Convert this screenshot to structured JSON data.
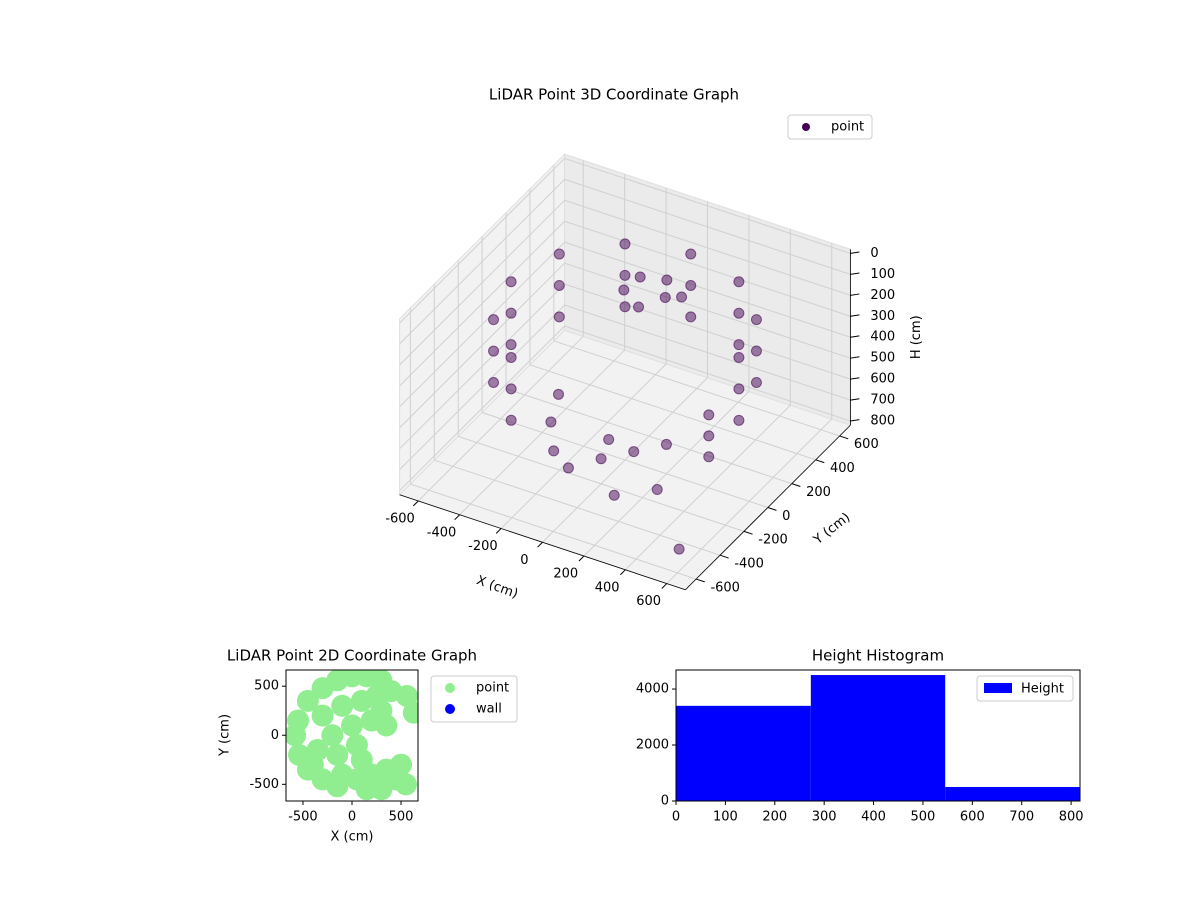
{
  "chart_data": [
    {
      "type": "scatter3d",
      "title": "LiDAR Point 3D Coordinate Graph",
      "xlabel": "X (cm)",
      "ylabel": "Y (cm)",
      "zlabel": "H (cm)",
      "xlim": [
        -690,
        690
      ],
      "ylim": [
        -690,
        690
      ],
      "zlim": [
        820,
        -20
      ],
      "xticks": [
        -600,
        -400,
        -200,
        0,
        200,
        400,
        600
      ],
      "yticks": [
        -600,
        -400,
        -200,
        0,
        200,
        400,
        600
      ],
      "zticks": [
        0,
        100,
        200,
        300,
        400,
        500,
        600,
        700,
        800
      ],
      "legend": "upper right",
      "series": [
        {
          "name": "point",
          "color": "#440154",
          "x": [
            550,
            476,
            275,
            0,
            -275,
            -476,
            -550,
            -476,
            -275,
            550,
            476,
            275,
            0,
            -275,
            -476,
            -550,
            -476,
            -275,
            550,
            476,
            275,
            0,
            -275,
            -476,
            -550,
            -476,
            -275,
            520,
            520,
            520,
            -100,
            0,
            50,
            -150,
            100,
            -50,
            -300,
            -200,
            -100,
            0,
            100,
            200,
            -350,
            300,
            -50,
            150,
            550
          ],
          "y": [
            0,
            275,
            476,
            550,
            476,
            275,
            0,
            -275,
            -476,
            0,
            275,
            476,
            550,
            476,
            275,
            0,
            -275,
            -476,
            0,
            275,
            476,
            550,
            476,
            275,
            0,
            -275,
            -476,
            -200,
            -200,
            -200,
            300,
            350,
            250,
            250,
            300,
            200,
            -100,
            -250,
            -300,
            -200,
            -100,
            0,
            50,
            -250,
            -50,
            -350,
            -500
          ],
          "h": [
            150,
            150,
            150,
            150,
            150,
            150,
            150,
            150,
            150,
            300,
            300,
            300,
            300,
            300,
            300,
            300,
            300,
            300,
            450,
            450,
            450,
            450,
            450,
            450,
            450,
            450,
            450,
            320,
            420,
            520,
            150,
            160,
            170,
            200,
            180,
            220,
            680,
            700,
            720,
            700,
            690,
            680,
            650,
            720,
            710,
            740,
            780
          ]
        }
      ]
    },
    {
      "type": "scatter",
      "title": "LiDAR Point 2D Coordinate Graph",
      "xlabel": "X (cm)",
      "ylabel": "Y (cm)",
      "xlim": [
        -673,
        673
      ],
      "ylim": [
        -670,
        665
      ],
      "xticks": [
        -500,
        0,
        500
      ],
      "yticks": [
        -500,
        0,
        500
      ],
      "legend": "outside right",
      "series": [
        {
          "name": "point",
          "color": "#90ee90",
          "x": [
            0,
            150,
            300,
            -150,
            -300,
            -450,
            -550,
            -580,
            -540,
            -450,
            -300,
            -150,
            -300,
            -100,
            100,
            250,
            -200,
            0,
            200,
            -350,
            -150,
            50,
            300,
            -100,
            50,
            200,
            350,
            450,
            550,
            300,
            150,
            500,
            400,
            560,
            630,
            -400,
            350,
            100
          ],
          "y": [
            600,
            600,
            560,
            560,
            480,
            350,
            150,
            0,
            -200,
            -350,
            -450,
            -520,
            200,
            300,
            350,
            400,
            0,
            100,
            150,
            -150,
            -200,
            -100,
            250,
            -400,
            -450,
            -400,
            -350,
            -450,
            -500,
            -550,
            -550,
            -300,
            450,
            400,
            230,
            -300,
            100,
            -250
          ]
        },
        {
          "name": "wall",
          "color": "#0000ff",
          "x": [],
          "y": []
        }
      ]
    },
    {
      "type": "histogram",
      "title": "Height Histogram",
      "name": "Height",
      "color": "#0000ff",
      "bins": [
        0,
        273,
        545,
        818
      ],
      "values": [
        3400,
        4500,
        500
      ],
      "xlim": [
        0,
        818
      ],
      "ylim": [
        0,
        4680
      ],
      "xticks": [
        0,
        100,
        200,
        300,
        400,
        500,
        600,
        700,
        800
      ],
      "yticks": [
        0,
        2000,
        4000
      ],
      "legend": "upper right"
    }
  ]
}
